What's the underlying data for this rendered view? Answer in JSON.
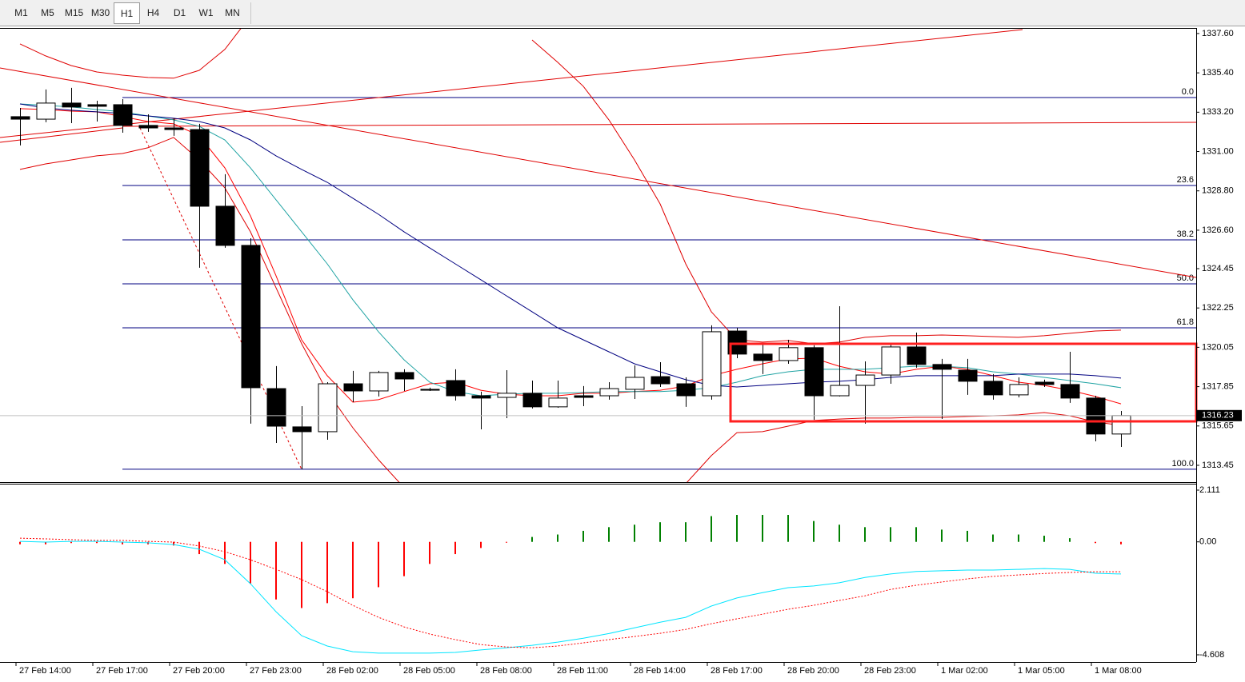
{
  "toolbar": {
    "timeframes": [
      "M1",
      "M5",
      "M15",
      "M30",
      "H1",
      "H4",
      "D1",
      "W1",
      "MN"
    ],
    "active": "H1"
  },
  "chart_data": [
    {
      "type": "candlestick",
      "categories": [
        "27 Feb 14:00",
        null,
        null,
        "27 Feb 17:00",
        null,
        null,
        "27 Feb 20:00",
        null,
        null,
        "27 Feb 23:00",
        null,
        null,
        "28 Feb 02:00",
        null,
        null,
        "28 Feb 05:00",
        null,
        null,
        "28 Feb 08:00",
        null,
        null,
        "28 Feb 11:00",
        null,
        null,
        "28 Feb 14:00",
        null,
        null,
        "28 Feb 17:00",
        null,
        null,
        "28 Feb 20:00",
        null,
        null,
        "28 Feb 23:00",
        null,
        null,
        "1 Mar 02:00",
        null,
        null,
        "1 Mar 05:00",
        null,
        null,
        "1 Mar 08:00",
        null
      ],
      "open": [
        1332.95,
        1332.81,
        1333.71,
        1333.62,
        1333.62,
        1332.46,
        1332.32,
        1332.23,
        1327.94,
        1325.75,
        1317.74,
        1315.6,
        1315.33,
        1318.01,
        1317.61,
        1318.64,
        1317.7,
        1318.19,
        1317.34,
        1317.25,
        1317.48,
        1316.72,
        1317.34,
        1317.34,
        1317.7,
        1318.41,
        1318.01,
        1317.34,
        1320.96,
        1319.67,
        1319.31,
        1320.03,
        1317.34,
        1317.92,
        1318.5,
        1320.07,
        1319.09,
        1318.77,
        1318.15,
        1317.39,
        1318.1,
        1317.97,
        1317.21,
        1315.2
      ],
      "high": [
        1333.44,
        1334.47,
        1334.56,
        1333.84,
        1333.93,
        1333.08,
        1332.86,
        1332.55,
        1329.73,
        1326.15,
        1319.0,
        1316.76,
        1318.1,
        1318.73,
        1318.73,
        1318.82,
        1317.79,
        1318.82,
        1317.57,
        1318.77,
        1318.19,
        1318.19,
        1317.88,
        1318.1,
        1319.04,
        1319.22,
        1318.37,
        1321.28,
        1321.14,
        1320.25,
        1320.47,
        1320.16,
        1322.35,
        1319.26,
        1320.25,
        1320.87,
        1319.4,
        1319.4,
        1318.55,
        1318.37,
        1318.24,
        1319.8,
        1317.34,
        1316.49
      ],
      "low": [
        1331.34,
        1332.64,
        1332.59,
        1332.68,
        1332.05,
        1332.1,
        1331.88,
        1324.5,
        1325.62,
        1315.78,
        1314.7,
        1313.23,
        1314.88,
        1316.98,
        1317.3,
        1317.61,
        1317.61,
        1317.07,
        1315.46,
        1316.09,
        1316.63,
        1316.67,
        1316.76,
        1317.12,
        1317.16,
        1317.83,
        1316.72,
        1317.12,
        1319.44,
        1318.55,
        1319.13,
        1316.0,
        1317.3,
        1315.78,
        1318.01,
        1318.91,
        1316.04,
        1317.39,
        1317.12,
        1317.25,
        1317.83,
        1316.94,
        1314.79,
        1314.48
      ],
      "close": [
        1332.81,
        1333.71,
        1333.49,
        1333.53,
        1332.46,
        1332.32,
        1332.23,
        1327.94,
        1325.75,
        1317.79,
        1315.64,
        1315.33,
        1318.01,
        1317.61,
        1318.64,
        1318.28,
        1317.65,
        1317.34,
        1317.21,
        1317.48,
        1316.72,
        1317.21,
        1317.25,
        1317.74,
        1318.37,
        1318.01,
        1317.34,
        1320.92,
        1319.67,
        1319.31,
        1320.03,
        1317.34,
        1317.92,
        1318.5,
        1320.07,
        1319.09,
        1318.82,
        1318.15,
        1317.39,
        1317.97,
        1317.97,
        1317.21,
        1315.2,
        1316.23
      ],
      "up_color": "#ffffff",
      "down_color": "#000000",
      "series": [
        {
          "color": "#ff0000",
          "values": [
            1333.4,
            1333.35,
            1333.26,
            1333.22,
            1332.95,
            1332.68,
            1332.55,
            1331.88,
            1330.09,
            1327.4,
            1324.05,
            1320.47,
            1318.46,
            1316.98,
            1317.12,
            1317.57,
            1318.01,
            1318.1,
            1317.65,
            1317.43,
            1317.34,
            1317.34,
            1317.48,
            1317.48,
            1317.57,
            1317.65,
            1317.88,
            1318.46,
            1318.82,
            1319.13,
            1319.4,
            1319.44,
            1318.99,
            1318.68,
            1318.55,
            1318.82,
            1318.99,
            1318.82,
            1318.46,
            1318.1,
            1317.92,
            1317.65,
            1317.3,
            1316.89
          ]
        },
        {
          "color": "#1fa3a3",
          "values": [
            1333.66,
            1333.58,
            1333.49,
            1333.35,
            1333.22,
            1332.99,
            1332.77,
            1332.41,
            1331.65,
            1330.09,
            1328.3,
            1326.51,
            1324.72,
            1322.71,
            1320.92,
            1319.35,
            1318.1,
            1317.57,
            1317.34,
            1317.43,
            1317.48,
            1317.48,
            1317.52,
            1317.57,
            1317.57,
            1317.57,
            1317.65,
            1317.79,
            1318.1,
            1318.46,
            1318.68,
            1318.82,
            1318.82,
            1318.82,
            1318.91,
            1318.99,
            1318.99,
            1318.91,
            1318.68,
            1318.55,
            1318.37,
            1318.19,
            1318.01,
            1317.79
          ]
        },
        {
          "color": "#000080",
          "values": [
            1333.66,
            1333.44,
            1333.31,
            1333.22,
            1333.13,
            1332.99,
            1332.86,
            1332.68,
            1332.32,
            1331.65,
            1330.76,
            1330.0,
            1329.28,
            1328.39,
            1327.49,
            1326.51,
            1325.61,
            1324.72,
            1323.83,
            1322.93,
            1322.04,
            1321.14,
            1320.47,
            1319.8,
            1319.13,
            1318.68,
            1318.24,
            1317.92,
            1317.83,
            1317.92,
            1318.01,
            1318.1,
            1318.15,
            1318.24,
            1318.37,
            1318.46,
            1318.46,
            1318.46,
            1318.46,
            1318.55,
            1318.55,
            1318.55,
            1318.46,
            1318.33
          ]
        },
        {
          "color": "#e00000",
          "values": [
            1337.02,
            1336.35,
            1335.81,
            1335.45,
            1335.27,
            1335.14,
            1335.1,
            1335.54,
            1336.71,
            1338.58,
            null,
            null,
            null,
            null,
            null,
            null,
            null,
            null,
            null,
            null,
            1337.24,
            1335.99,
            1334.65,
            1332.77,
            1330.53,
            1328.07,
            1324.72,
            1322.04,
            1320.47,
            1320.34,
            1320.43,
            1320.25,
            1320.34,
            1320.61,
            1320.7,
            1320.7,
            1320.74,
            1320.7,
            1320.65,
            1320.61,
            1320.7,
            1320.83,
            1320.96,
            1321.01
          ]
        },
        {
          "color": "#e00000",
          "values": [
            1330.0,
            1330.31,
            1330.53,
            1330.76,
            1330.89,
            1331.21,
            1331.79,
            1330.53,
            1328.97,
            1326.51,
            1323.38,
            1320.25,
            1317.57,
            1315.55,
            1313.76,
            1312.2,
            null,
            null,
            null,
            null,
            null,
            null,
            null,
            null,
            null,
            null,
            1312.42,
            1313.99,
            1315.28,
            1315.33,
            1315.64,
            1315.96,
            1316.04,
            1316.09,
            1316.09,
            1316.13,
            1316.13,
            1316.18,
            1316.22,
            1316.27,
            1316.4,
            1316.22,
            1315.87,
            1315.69
          ]
        }
      ],
      "fibonacci": {
        "color": "#000080",
        "levels": [
          {
            "label": "0.0",
            "value": 1334.02
          },
          {
            "label": "23.6",
            "value": 1329.1
          },
          {
            "label": "38.2",
            "value": 1326.06
          },
          {
            "label": "50.0",
            "value": 1323.6
          },
          {
            "label": "61.8",
            "value": 1321.14
          },
          {
            "label": "100.0",
            "value": 1313.23
          }
        ]
      },
      "ylim": [
        1312.51,
        1337.91
      ],
      "yticks": [
        {
          "value": 1337.6,
          "label": "1337.60"
        },
        {
          "value": 1335.4,
          "label": "1335.40"
        },
        {
          "value": 1333.2,
          "label": "1333.20"
        },
        {
          "value": 1331.0,
          "label": "1331.00"
        },
        {
          "value": 1328.8,
          "label": "1328.80"
        },
        {
          "value": 1326.6,
          "label": "1326.60"
        },
        {
          "value": 1324.45,
          "label": "1324.45"
        },
        {
          "value": 1322.25,
          "label": "1322.25"
        },
        {
          "value": 1320.05,
          "label": "1320.05"
        },
        {
          "value": 1317.85,
          "label": "1317.85"
        },
        {
          "value": 1315.65,
          "label": "1315.65"
        },
        {
          "value": 1313.45,
          "label": "1313.45"
        }
      ]
    },
    {
      "type": "macd",
      "values": [
        -0.1,
        -0.1,
        -0.05,
        -0.05,
        -0.1,
        -0.1,
        -0.15,
        -0.5,
        -0.9,
        -1.7,
        -2.35,
        -2.7,
        -2.5,
        -2.3,
        -1.85,
        -1.4,
        -0.9,
        -0.5,
        -0.25,
        -0.02,
        0.2,
        0.3,
        0.45,
        0.6,
        0.7,
        0.8,
        0.8,
        1.05,
        1.1,
        1.1,
        1.1,
        0.85,
        0.7,
        0.6,
        0.6,
        0.6,
        0.5,
        0.45,
        0.3,
        0.3,
        0.25,
        0.15,
        -0.05,
        -0.1
      ],
      "positive_color": "#008000",
      "negative_color": "#ff0000",
      "series": [
        {
          "color": "#00e5ff",
          "values": [
            0.02,
            -0.01,
            0.02,
            0.02,
            -0.01,
            -0.04,
            -0.11,
            -0.3,
            -0.73,
            -1.71,
            -2.85,
            -3.83,
            -4.25,
            -4.48,
            -4.54,
            -4.54,
            -4.54,
            -4.51,
            -4.41,
            -4.32,
            -4.22,
            -4.09,
            -3.93,
            -3.74,
            -3.51,
            -3.28,
            -3.08,
            -2.62,
            -2.29,
            -2.07,
            -1.87,
            -1.8,
            -1.67,
            -1.45,
            -1.31,
            -1.21,
            -1.18,
            -1.15,
            -1.15,
            -1.12,
            -1.09,
            -1.12,
            -1.28,
            -1.31
          ]
        },
        {
          "color": "#ff0000",
          "dashed": true,
          "values": [
            0.15,
            0.12,
            0.09,
            0.06,
            0.06,
            0.02,
            -0.01,
            -0.17,
            -0.4,
            -0.73,
            -1.12,
            -1.54,
            -2.03,
            -2.59,
            -3.08,
            -3.47,
            -3.76,
            -3.99,
            -4.19,
            -4.29,
            -4.32,
            -4.25,
            -4.12,
            -3.99,
            -3.86,
            -3.73,
            -3.57,
            -3.34,
            -3.14,
            -2.95,
            -2.75,
            -2.59,
            -2.39,
            -2.2,
            -1.94,
            -1.77,
            -1.64,
            -1.51,
            -1.41,
            -1.35,
            -1.29,
            -1.25,
            -1.22,
            -1.22
          ]
        }
      ],
      "ylim": [
        -4.902,
        2.372
      ],
      "yticks": [
        2.111,
        {
          "value": 0,
          "label": "0.00"
        },
        -4.608
      ]
    }
  ]
}
